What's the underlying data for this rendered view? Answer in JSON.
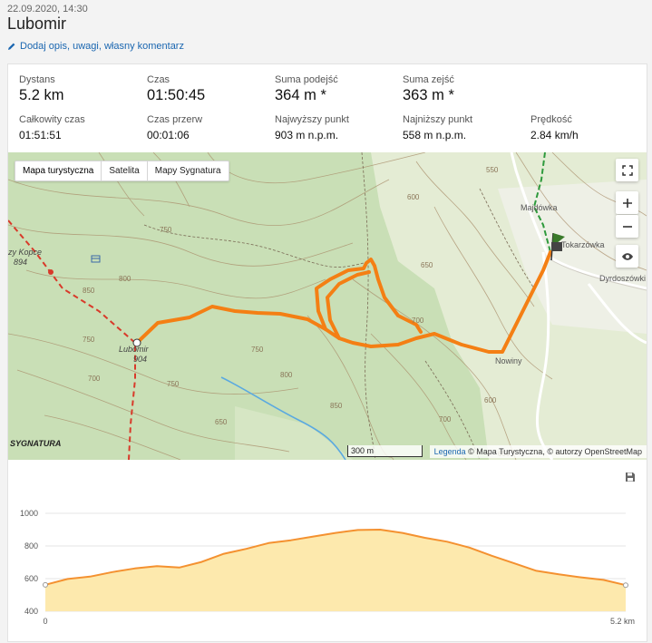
{
  "header": {
    "date": "22.09.2020, 14:30",
    "title": "Lubomir",
    "edit_link": "Dodaj opis, uwagi, własny komentarz"
  },
  "stats": {
    "distance": {
      "label": "Dystans",
      "value": "5.2 km"
    },
    "time": {
      "label": "Czas",
      "value": "01:50:45"
    },
    "ascent": {
      "label": "Suma podejść",
      "value": "364 m *"
    },
    "descent": {
      "label": "Suma zejść",
      "value": "363 m *"
    },
    "total_time": {
      "label": "Całkowity czas",
      "value": "01:51:51"
    },
    "break_time": {
      "label": "Czas przerw",
      "value": "00:01:06"
    },
    "highest": {
      "label": "Najwyższy punkt",
      "value": "903 m n.p.m."
    },
    "lowest": {
      "label": "Najniższy punkt",
      "value": "558 m n.p.m."
    },
    "speed": {
      "label": "Prędkość",
      "value": "2.84 km/h"
    }
  },
  "map": {
    "tabs": [
      "Mapa turystyczna",
      "Satelita",
      "Mapy Sygnatura"
    ],
    "active_tab": "Mapa turystyczna",
    "labels": {
      "peak": "Lubomir",
      "peak_elev": "904",
      "kopce": "zy Kopce",
      "kopce_elev": "894",
      "majdowka": "Majdówka",
      "tokarzowka": "Tokarzówka",
      "dyrdoszowki": "Dyrdoszówki",
      "nowiny": "Nowiny"
    },
    "contour_labels": [
      "750",
      "850",
      "800",
      "750",
      "700",
      "650",
      "600",
      "550",
      "650",
      "700",
      "750",
      "800",
      "850",
      "750",
      "600",
      "650",
      "700"
    ],
    "scale": "300 m",
    "attribution_legend": "Legenda",
    "attribution_text": "© Mapa Turystyczna, © autorzy OpenStreetMap",
    "logo": "SYGNATURA",
    "colors": {
      "track": "#f47f14",
      "terrain": "#c9dfb6",
      "red_trail": "#d83a2a",
      "green_trail": "#2e9a3c",
      "stream": "#5aa9e0"
    }
  },
  "chart_data": {
    "type": "area",
    "xlabel": "",
    "ylabel": "",
    "x_tick_labels": [
      "0",
      "5.2 km"
    ],
    "xlim": [
      0,
      5.2
    ],
    "ylim": [
      400,
      1000
    ],
    "y_ticks": [
      400,
      600,
      800,
      1000
    ],
    "grid": true,
    "fill_color": "#fde9ad",
    "line_color": "#f49130",
    "x": [
      0,
      0.2,
      0.4,
      0.6,
      0.8,
      1.0,
      1.2,
      1.4,
      1.6,
      1.8,
      2.0,
      2.2,
      2.4,
      2.6,
      2.8,
      3.0,
      3.2,
      3.4,
      3.6,
      3.8,
      4.0,
      4.2,
      4.4,
      4.6,
      4.8,
      5.0,
      5.2
    ],
    "elevation": [
      562,
      598,
      612,
      640,
      662,
      676,
      668,
      702,
      752,
      782,
      818,
      835,
      858,
      880,
      898,
      900,
      880,
      850,
      826,
      790,
      740,
      694,
      648,
      626,
      608,
      592,
      560
    ]
  }
}
